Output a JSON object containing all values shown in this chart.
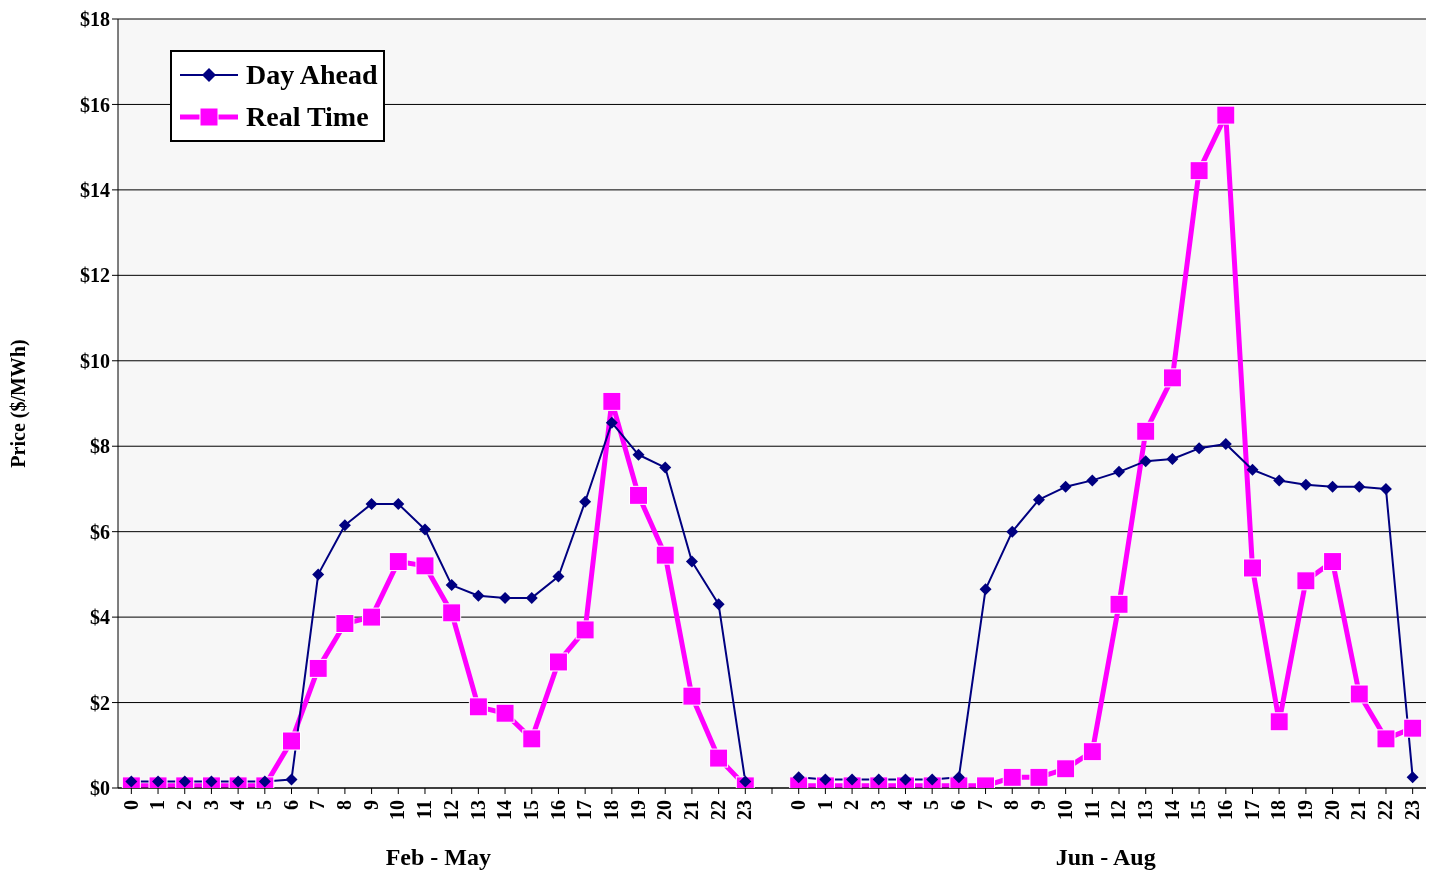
{
  "chart_data": {
    "type": "line",
    "ylabel": "Price ($/MWh)",
    "categories": [
      "0",
      "1",
      "2",
      "3",
      "4",
      "5",
      "6",
      "7",
      "8",
      "9",
      "10",
      "11",
      "12",
      "13",
      "14",
      "15",
      "16",
      "17",
      "18",
      "19",
      "20",
      "21",
      "22",
      "23",
      null,
      "0",
      "1",
      "2",
      "3",
      "4",
      "5",
      "6",
      "7",
      "8",
      "9",
      "10",
      "11",
      "12",
      "13",
      "14",
      "15",
      "16",
      "17",
      "18",
      "19",
      "20",
      "21",
      "22",
      "23"
    ],
    "series": [
      {
        "name": "Day Ahead",
        "color": "#000080",
        "marker": "diamond",
        "values": [
          0.15,
          0.15,
          0.15,
          0.15,
          0.15,
          0.15,
          0.2,
          5.0,
          6.15,
          6.65,
          6.65,
          6.05,
          4.75,
          4.5,
          4.45,
          4.45,
          4.95,
          6.7,
          8.55,
          7.8,
          7.5,
          5.3,
          4.3,
          0.15,
          null,
          0.25,
          0.2,
          0.2,
          0.2,
          0.2,
          0.2,
          0.25,
          4.65,
          6.0,
          6.75,
          7.05,
          7.2,
          7.4,
          7.65,
          7.7,
          7.95,
          8.05,
          7.45,
          7.2,
          7.1,
          7.05,
          7.05,
          7.0,
          0.25
        ]
      },
      {
        "name": "Real Time",
        "color": "#ff00ff",
        "marker": "square",
        "values": [
          0.05,
          0.05,
          0.05,
          0.05,
          0.05,
          0.05,
          1.1,
          2.8,
          3.85,
          4.0,
          5.3,
          5.2,
          4.1,
          1.9,
          1.75,
          1.15,
          2.95,
          3.7,
          9.05,
          6.85,
          5.45,
          2.15,
          0.7,
          0.05,
          null,
          0.05,
          0.05,
          0.05,
          0.05,
          0.05,
          0.05,
          0.05,
          0.05,
          0.25,
          0.25,
          0.45,
          0.85,
          4.3,
          8.35,
          9.6,
          14.45,
          15.75,
          5.15,
          1.55,
          4.85,
          5.3,
          2.2,
          1.15,
          1.4
        ]
      }
    ],
    "ylim": [
      0,
      18
    ],
    "yticks": [
      {
        "value": 0,
        "label": "$0"
      },
      {
        "value": 2,
        "label": "$2"
      },
      {
        "value": 4,
        "label": "$4"
      },
      {
        "value": 6,
        "label": "$6"
      },
      {
        "value": 8,
        "label": "$8"
      },
      {
        "value": 10,
        "label": "$10"
      },
      {
        "value": 12,
        "label": "$12"
      },
      {
        "value": 14,
        "label": "$14"
      },
      {
        "value": 16,
        "label": "$16"
      },
      {
        "value": 18,
        "label": "$18"
      }
    ],
    "grid": "y",
    "legend": "top left",
    "annotations": [
      "Feb - May",
      "Jun - Aug"
    ]
  }
}
